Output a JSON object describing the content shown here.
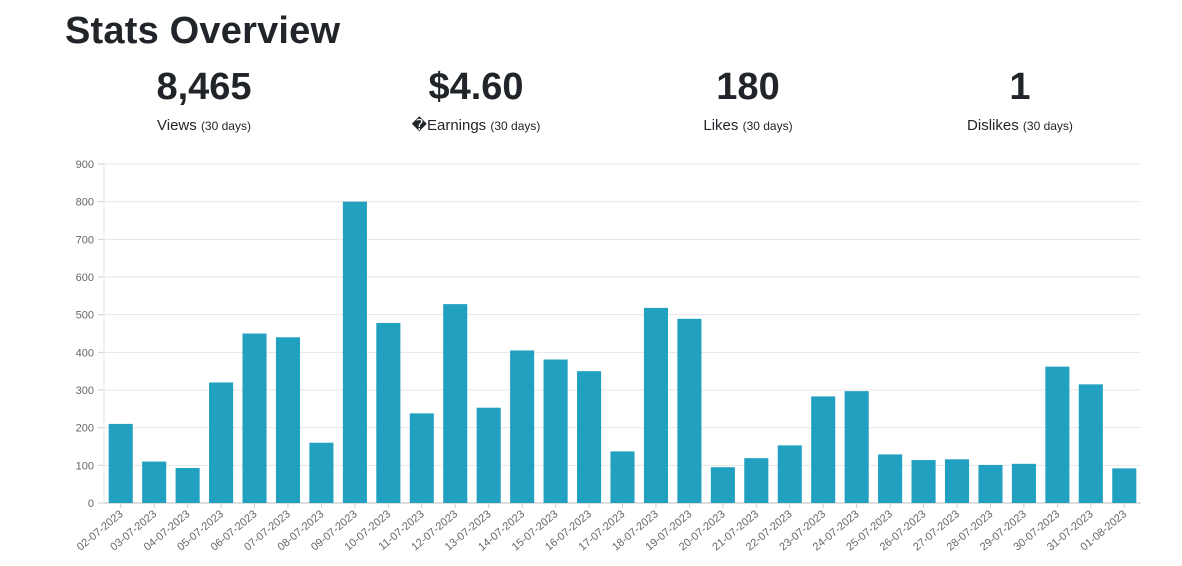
{
  "page": {
    "title": "Stats Overview"
  },
  "stats": [
    {
      "value": "8,465",
      "label": "Views",
      "period": "(30 days)"
    },
    {
      "value": "$4.60",
      "label": "�Earnings",
      "period": "(30 days)"
    },
    {
      "value": "180",
      "label": "Likes",
      "period": "(30 days)"
    },
    {
      "value": "1",
      "label": "Dislikes",
      "period": "(30 days)"
    }
  ],
  "chart_data": {
    "type": "bar",
    "title": "",
    "xlabel": "",
    "ylabel": "",
    "ylim": [
      0,
      900
    ],
    "yticks": [
      0,
      100,
      200,
      300,
      400,
      500,
      600,
      700,
      800,
      900
    ],
    "grid": true,
    "bar_color": "#22a0c0",
    "categories": [
      "02-07-2023",
      "03-07-2023",
      "04-07-2023",
      "05-07-2023",
      "06-07-2023",
      "07-07-2023",
      "08-07-2023",
      "09-07-2023",
      "10-07-2023",
      "11-07-2023",
      "12-07-2023",
      "13-07-2023",
      "14-07-2023",
      "15-07-2023",
      "16-07-2023",
      "17-07-2023",
      "18-07-2023",
      "19-07-2023",
      "20-07-2023",
      "21-07-2023",
      "22-07-2023",
      "23-07-2023",
      "24-07-2023",
      "25-07-2023",
      "26-07-2023",
      "27-07-2023",
      "28-07-2023",
      "29-07-2023",
      "30-07-2023",
      "31-07-2023",
      "01-08-2023"
    ],
    "values": [
      210,
      110,
      93,
      320,
      450,
      440,
      160,
      800,
      478,
      238,
      528,
      253,
      405,
      381,
      350,
      137,
      518,
      489,
      95,
      119,
      153,
      283,
      297,
      129,
      114,
      116,
      101,
      104,
      362,
      315,
      92
    ]
  }
}
